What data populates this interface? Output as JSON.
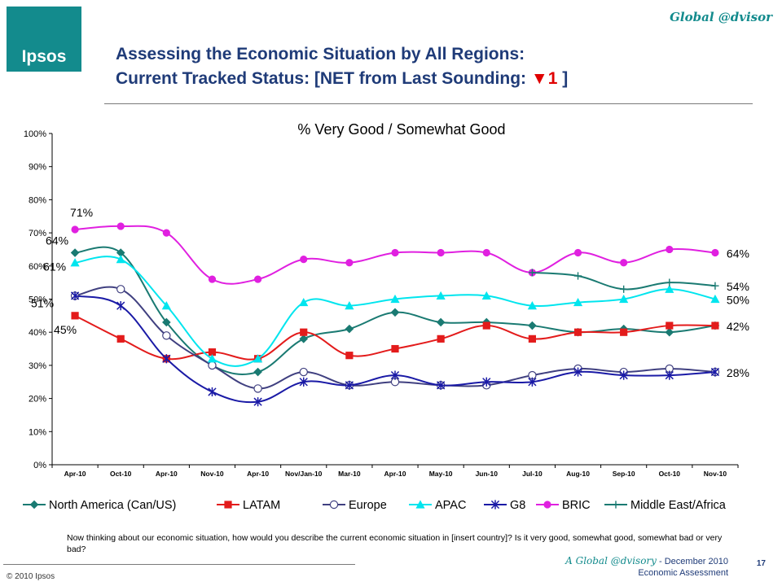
{
  "header": {
    "logo_text": "Ipsos",
    "brand": "Global @dvisor",
    "title_line1": "Assessing the Economic Situation by All Regions:",
    "title_line2_prefix": "Current Tracked Status:  [NET from Last Sounding: ",
    "title_arrow": "▼",
    "title_net_value": "1",
    "title_line2_suffix": " ]"
  },
  "chart_data": {
    "type": "line",
    "title": "% Very Good / Somewhat Good",
    "categories": [
      "Apr-10",
      "Oct-10",
      "Apr-10",
      "Nov-10",
      "Apr-10",
      "Nov/Jan-10",
      "Mar-10",
      "Apr-10",
      "May-10",
      "Jun-10",
      "Jul-10",
      "Aug-10",
      "Sep-10",
      "Oct-10",
      "Nov-10"
    ],
    "ylim": [
      0,
      100
    ],
    "yticks": [
      0,
      10,
      20,
      30,
      40,
      50,
      60,
      70,
      80,
      90,
      100
    ],
    "ytick_labels": [
      "0%",
      "10%",
      "20%",
      "30%",
      "40%",
      "50%",
      "60%",
      "70%",
      "80%",
      "90%",
      "100%"
    ],
    "grid": false,
    "legend_position": "bottom",
    "series": [
      {
        "name": "North America (Can/US)",
        "color": "#1a7a72",
        "marker": "diamond",
        "values": [
          64,
          64,
          43,
          30,
          28,
          38,
          41,
          46,
          43,
          43,
          42,
          40,
          41,
          40,
          42
        ]
      },
      {
        "name": "LATAM",
        "color": "#e31b1b",
        "marker": "square",
        "values": [
          45,
          38,
          32,
          34,
          32,
          40,
          33,
          35,
          38,
          42,
          38,
          40,
          40,
          42,
          42
        ]
      },
      {
        "name": "Europe",
        "color": "#404080",
        "marker": "circle",
        "values": [
          51,
          53,
          39,
          30,
          23,
          28,
          24,
          25,
          24,
          24,
          27,
          29,
          28,
          29,
          28
        ]
      },
      {
        "name": "APAC",
        "color": "#00e5ee",
        "marker": "triangle",
        "values": [
          61,
          62,
          48,
          32,
          32,
          49,
          48,
          50,
          51,
          51,
          48,
          49,
          50,
          53,
          50
        ]
      },
      {
        "name": "G8",
        "color": "#1a1aa6",
        "marker": "star",
        "values": [
          51,
          48,
          32,
          22,
          19,
          25,
          24,
          27,
          24,
          25,
          25,
          28,
          27,
          27,
          28
        ]
      },
      {
        "name": "BRIC",
        "color": "#e020e0",
        "marker": "circle-filled",
        "values": [
          71,
          72,
          70,
          56,
          56,
          62,
          61,
          64,
          64,
          64,
          58,
          64,
          61,
          65,
          64
        ]
      },
      {
        "name": "Middle East/Africa",
        "color": "#1a7a72",
        "marker": "plus",
        "values": [
          null,
          null,
          null,
          null,
          null,
          null,
          null,
          null,
          null,
          null,
          58,
          57,
          53,
          55,
          54
        ]
      }
    ],
    "annotations": [
      {
        "text": "71%",
        "series": "BRIC",
        "end": "first"
      },
      {
        "text": "64%",
        "series": "North America (Can/US)",
        "end": "first"
      },
      {
        "text": "61%",
        "series": "APAC",
        "end": "first"
      },
      {
        "text": "51%",
        "series": "Europe",
        "end": "first"
      },
      {
        "text": "45%",
        "series": "LATAM",
        "end": "first"
      },
      {
        "text": "64%",
        "series": "BRIC",
        "end": "last"
      },
      {
        "text": "54%",
        "series": "Middle East/Africa",
        "end": "last"
      },
      {
        "text": "50%",
        "series": "APAC",
        "end": "last"
      },
      {
        "text": "42%",
        "series": "North America (Can/US)",
        "end": "last"
      },
      {
        "text": "28%",
        "series": "G8",
        "end": "last"
      }
    ]
  },
  "question_text": "Now thinking about our economic situation, how would you describe the current economic situation in [insert country]?  Is it very good, somewhat good, somewhat bad or very bad?",
  "footer": {
    "copyright": "© 2010 Ipsos",
    "publication": "A Global @dvisory",
    "date": " - December 2010",
    "subtitle": "Economic Assessment",
    "page_number": "17"
  }
}
